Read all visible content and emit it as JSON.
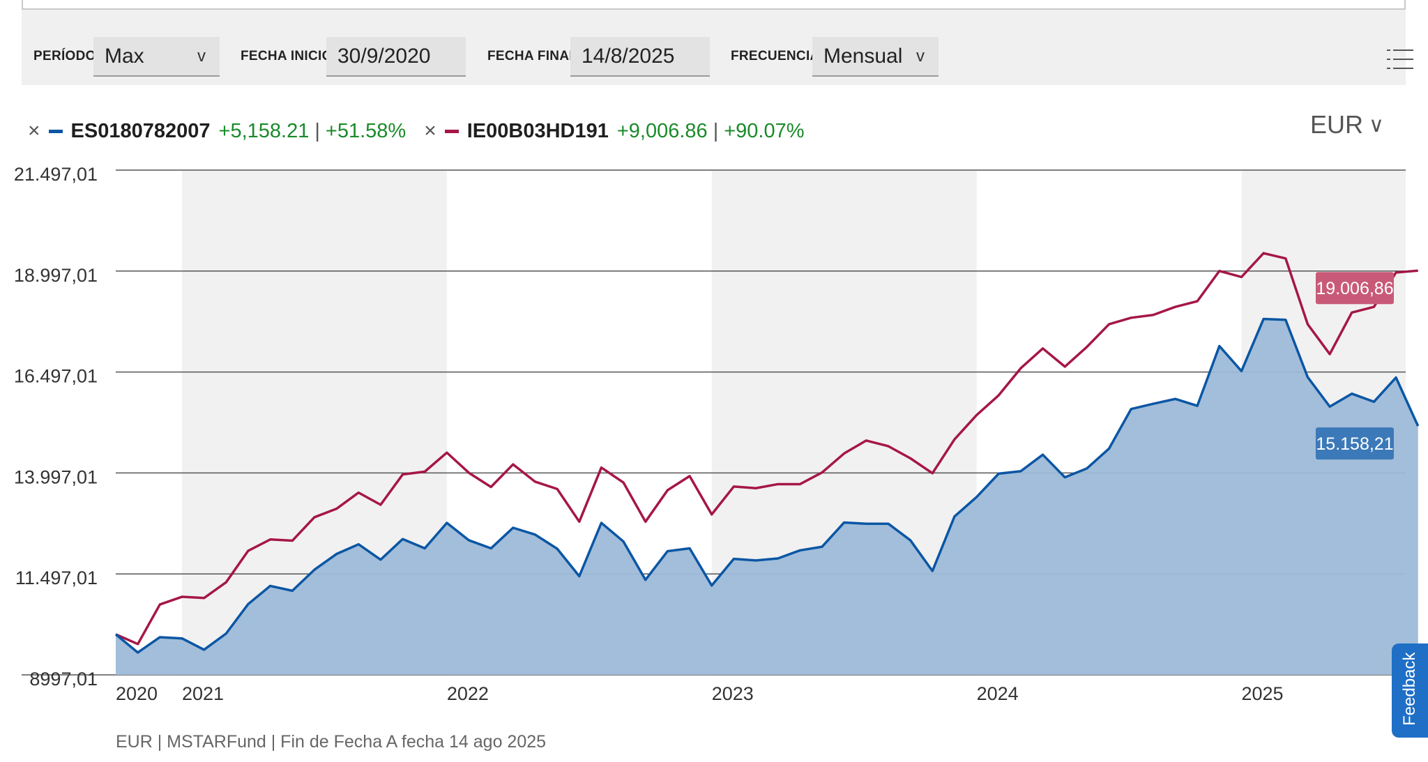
{
  "toolbar": {
    "period_label": "PERÍODO",
    "period_value": "Max",
    "start_label": "FECHA INICIO",
    "start_value": "30/9/2020",
    "end_label": "FECHA FINAL",
    "end_value": "14/8/2025",
    "freq_label": "FRECUENCIA",
    "freq_value": "Mensual",
    "chevron": "v",
    "menu_icon": "list-icon"
  },
  "legend": {
    "remove_symbol": "×",
    "separator": "|",
    "series": [
      {
        "name": "ES0180782007",
        "change": "+5,158.21",
        "pct": "+51.58%",
        "color": "#0b56a4"
      },
      {
        "name": "IE00B03HD191",
        "change": "+9,006.86",
        "pct": "+90.07%",
        "color": "#a51745"
      }
    ]
  },
  "currency": {
    "value": "EUR",
    "chevron": "∨"
  },
  "colors": {
    "blue": "#0b56a4",
    "red": "#a51745",
    "area": "#9dbad8",
    "band": "#f1f1f1",
    "red_label": "#c85a78",
    "blue_label": "#3c79b8"
  },
  "chart_data": {
    "type": "line",
    "x_tick_labels": [
      "2020",
      "2021",
      "2022",
      "2023",
      "2024",
      "2025"
    ],
    "y_tick_labels": [
      "21.497,01",
      "18.997,01",
      "16.497,01",
      "13.997,01",
      "11.497,01",
      "8997,01"
    ],
    "ylim": [
      8997.01,
      21497.01
    ],
    "x_start": 2020.75,
    "x_step": 0.0833333,
    "grid": true,
    "end_labels": [
      "19.006,86",
      "15.158,21"
    ],
    "series": [
      {
        "name": "IE00B03HD191",
        "color": "#a51745",
        "area": false,
        "values": [
          10000,
          9760,
          10740,
          10930,
          10900,
          11290,
          12070,
          12350,
          12320,
          12900,
          13110,
          13510,
          13210,
          13960,
          14030,
          14500,
          14000,
          13650,
          14210,
          13780,
          13600,
          12790,
          14130,
          13760,
          12790,
          13570,
          13920,
          12970,
          13660,
          13620,
          13720,
          13720,
          14010,
          14480,
          14800,
          14660,
          14360,
          13990,
          14830,
          15430,
          15920,
          16590,
          17080,
          16630,
          17120,
          17680,
          17840,
          17910,
          18110,
          18250,
          19000,
          18850,
          19440,
          19310,
          17680,
          16940,
          17970,
          18110,
          18960,
          19006.86
        ]
      },
      {
        "name": "ES0180782007",
        "color": "#0b56a4",
        "area": true,
        "values": [
          10000,
          9550,
          9930,
          9900,
          9620,
          10020,
          10750,
          11200,
          11080,
          11600,
          11990,
          12230,
          11850,
          12360,
          12130,
          12760,
          12330,
          12130,
          12640,
          12470,
          12120,
          11440,
          12760,
          12300,
          11350,
          12060,
          12130,
          11210,
          11870,
          11830,
          11880,
          12080,
          12170,
          12770,
          12740,
          12740,
          12330,
          11570,
          12920,
          13400,
          13980,
          14040,
          14450,
          13890,
          14110,
          14600,
          15580,
          15710,
          15830,
          15660,
          17140,
          16520,
          17810,
          17790,
          16370,
          15640,
          15960,
          15760,
          16360,
          15158.21
        ]
      }
    ],
    "source_note": "EUR | MSTARFund | Fin de Fecha A fecha 14 ago 2025"
  },
  "feedback_label": "Feedback"
}
